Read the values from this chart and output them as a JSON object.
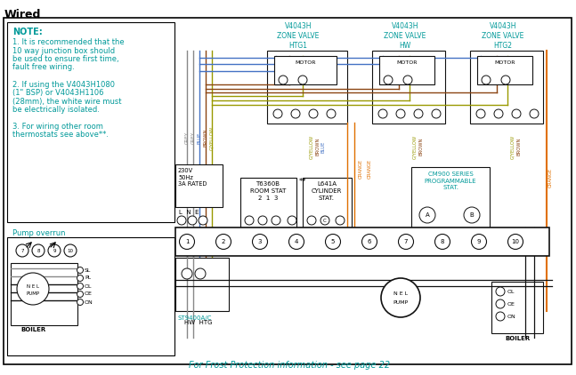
{
  "title": "Wired",
  "bg_color": "#ffffff",
  "note_text": "NOTE:",
  "note_lines": [
    "1. It is recommended that the",
    "10 way junction box should",
    "be used to ensure first time,",
    "fault free wiring.",
    "",
    "2. If using the V4043H1080",
    "(1\" BSP) or V4043H1106",
    "(28mm), the white wire must",
    "be electrically isolated.",
    "",
    "3. For wiring other room",
    "thermostats see above**."
  ],
  "pump_overrun_label": "Pump overrun",
  "frost_text": "For Frost Protection information - see page 22",
  "zone_labels": [
    "V4043H\nZONE VALVE\nHTG1",
    "V4043H\nZONE VALVE\nHW",
    "V4043H\nZONE VALVE\nHTG2"
  ],
  "wire_grey": "#888888",
  "wire_blue": "#4472C4",
  "wire_brown": "#8B4513",
  "wire_gyellow": "#999900",
  "wire_orange": "#E07000",
  "wire_black": "#111111",
  "cyan_color": "#009999",
  "note_color": "#009999",
  "title_color": "#000000",
  "frost_color": "#009999",
  "border_color": "#000000"
}
